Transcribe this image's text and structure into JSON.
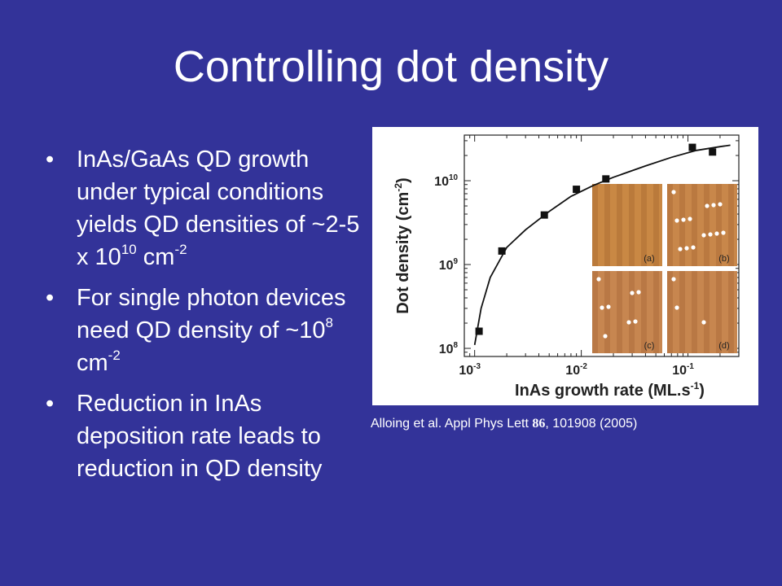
{
  "slide": {
    "title": "Controlling dot density"
  },
  "bullets": [
    {
      "parts": [
        "InAs/GaAs QD growth under typical conditions yields QD densities of ~2-5 x 10",
        "10",
        " cm",
        "-2"
      ]
    },
    {
      "parts": [
        "For single photon devices need QD density of ~10",
        "8",
        " cm",
        "-2"
      ]
    },
    {
      "parts": [
        "Reduction in InAs deposition rate leads to reduction in QD density"
      ]
    }
  ],
  "bullet_symbol": "•",
  "caption": {
    "pre": "Alloing et al. Appl Phys Lett ",
    "volume": "86",
    "post": ", 101908 (2005)"
  },
  "chart_data": {
    "type": "scatter",
    "xscale": "log",
    "yscale": "log",
    "xlabel": "InAs growth rate (ML.s",
    "xlabel_sup": "-1",
    "xlabel_end": ")",
    "ylabel": "Dot density (cm",
    "ylabel_sup": "-2",
    "ylabel_end": ")",
    "xlim": [
      0.0008,
      0.3
    ],
    "ylim": [
      80000000,
      35000000000
    ],
    "xticks": [
      {
        "value": 0.001,
        "base": "10",
        "exp": "-3"
      },
      {
        "value": 0.01,
        "base": "10",
        "exp": "-2"
      },
      {
        "value": 0.1,
        "base": "10",
        "exp": "-1"
      }
    ],
    "yticks": [
      {
        "value": 100000000,
        "base": "10",
        "exp": "8"
      },
      {
        "value": 1000000000,
        "base": "10",
        "exp": "9"
      },
      {
        "value": 10000000000,
        "base": "10",
        "exp": "10"
      }
    ],
    "points": [
      {
        "x": 0.0011,
        "y": 160000000
      },
      {
        "x": 0.0018,
        "y": 1450000000
      },
      {
        "x": 0.0045,
        "y": 3900000000
      },
      {
        "x": 0.009,
        "y": 7900000000
      },
      {
        "x": 0.017,
        "y": 10500000000
      },
      {
        "x": 0.11,
        "y": 25000000000
      },
      {
        "x": 0.17,
        "y": 22000000000
      }
    ],
    "fit_curve": [
      {
        "x": 0.001,
        "y": 110000000
      },
      {
        "x": 0.00115,
        "y": 300000000
      },
      {
        "x": 0.0014,
        "y": 700000000
      },
      {
        "x": 0.002,
        "y": 1600000000
      },
      {
        "x": 0.003,
        "y": 2600000000
      },
      {
        "x": 0.005,
        "y": 4300000000
      },
      {
        "x": 0.008,
        "y": 6500000000
      },
      {
        "x": 0.013,
        "y": 8800000000
      },
      {
        "x": 0.02,
        "y": 11000000000
      },
      {
        "x": 0.04,
        "y": 15000000000
      },
      {
        "x": 0.07,
        "y": 19000000000
      },
      {
        "x": 0.12,
        "y": 23000000000
      },
      {
        "x": 0.2,
        "y": 25500000000
      },
      {
        "x": 0.25,
        "y": 26500000000
      }
    ],
    "insets": [
      {
        "label": "(a)",
        "dots": 0,
        "color": "#c98844"
      },
      {
        "label": "(b)",
        "dots": 14,
        "color": "#c8874a"
      },
      {
        "label": "(c)",
        "dots": 8,
        "color": "#c78650"
      },
      {
        "label": "(d)",
        "dots": 3,
        "color": "#c7864f"
      }
    ],
    "colors": {
      "marker": "#111111",
      "curve": "#111111",
      "axes": "#222222",
      "inset_dots": "#ffffff"
    }
  }
}
